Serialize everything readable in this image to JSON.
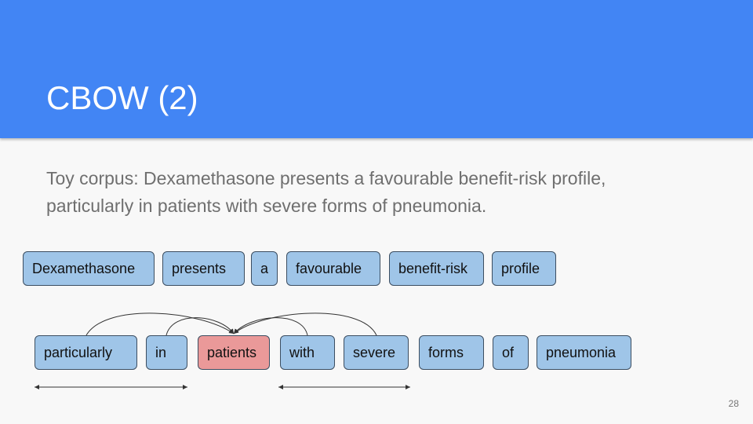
{
  "slide": {
    "title": "CBOW (2)",
    "paragraph": "Toy corpus: Dexamethasone presents a favourable benefit-risk profile, particularly in patients with severe forms of pneumonia.",
    "page_number": "28"
  },
  "row1": [
    "Dexamethasone",
    "presents",
    "a",
    "favourable",
    "benefit-risk",
    "profile"
  ],
  "row2": [
    "particularly",
    "in",
    "patients",
    "with",
    "severe",
    "forms",
    "of",
    "pneumonia"
  ],
  "target_word": "patients",
  "colors": {
    "header": "#4285f4",
    "token_fill": "#9fc5e8",
    "target_fill": "#ea9999",
    "token_border": "#3c4e61"
  }
}
